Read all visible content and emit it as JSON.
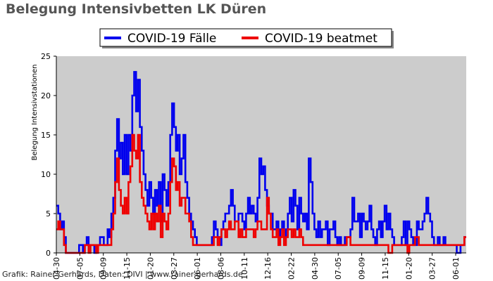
{
  "chart_data": {
    "type": "line",
    "title": "Belegung Intensivbetten LK Düren",
    "ylabel": "Belegung Intensivstationen",
    "xlabel": "",
    "ylim": [
      0,
      25
    ],
    "yticks": [
      0,
      5,
      10,
      15,
      20,
      25
    ],
    "x_tick_labels": [
      "04-30",
      "07-05",
      "09-09",
      "11-15",
      "01-20",
      "03-27",
      "06-01",
      "08-06",
      "10-11",
      "12-16",
      "02-22",
      "04-30",
      "07-05",
      "09-09",
      "11-15",
      "01-20",
      "03-27",
      "06-01"
    ],
    "grid": false,
    "legend_position": "top-center",
    "credit": "Grafik: Rainer Gerhards, Daten: DIVI | www.rainer-gerhards.de",
    "plot_background": "#cccccc",
    "series": [
      {
        "name": "COVID-19 Fälle",
        "color": "#0000ee",
        "values": [
          6,
          5,
          3,
          4,
          2,
          0,
          0,
          0,
          0,
          0,
          0,
          0,
          1,
          1,
          0,
          1,
          2,
          1,
          1,
          1,
          0,
          1,
          1,
          2,
          2,
          1,
          1,
          3,
          2,
          5,
          7,
          13,
          17,
          12,
          14,
          10,
          15,
          10,
          15,
          13,
          20,
          23,
          18,
          22,
          16,
          13,
          10,
          8,
          6,
          9,
          7,
          5,
          8,
          6,
          9,
          4,
          10,
          8,
          6,
          9,
          15,
          19,
          16,
          13,
          15,
          10,
          12,
          15,
          9,
          7,
          5,
          4,
          3,
          2,
          1,
          1,
          1,
          1,
          1,
          1,
          1,
          1,
          2,
          4,
          3,
          2,
          1,
          3,
          4,
          5,
          5,
          6,
          8,
          6,
          4,
          4,
          5,
          5,
          4,
          3,
          5,
          7,
          5,
          6,
          5,
          4,
          7,
          12,
          10,
          11,
          8,
          6,
          5,
          5,
          3,
          3,
          4,
          2,
          3,
          4,
          2,
          3,
          5,
          7,
          4,
          8,
          6,
          3,
          7,
          5,
          4,
          5,
          3,
          12,
          9,
          5,
          3,
          2,
          4,
          2,
          3,
          3,
          4,
          1,
          3,
          3,
          4,
          2,
          1,
          2,
          1,
          1,
          2,
          2,
          2,
          3,
          7,
          4,
          4,
          5,
          2,
          5,
          4,
          3,
          4,
          6,
          3,
          2,
          1,
          3,
          4,
          2,
          4,
          6,
          3,
          5,
          3,
          2,
          1,
          1,
          1,
          1,
          2,
          4,
          1,
          4,
          3,
          2,
          1,
          1,
          4,
          3,
          3,
          4,
          5,
          7,
          5,
          4,
          2,
          1,
          1,
          2,
          1,
          1,
          2,
          1,
          1,
          1,
          1,
          1,
          1,
          0,
          0,
          1,
          1,
          2,
          2
        ]
      },
      {
        "name": "COVID-19 beatmet",
        "color": "#ee0000",
        "values": [
          3,
          4,
          3,
          3,
          1,
          0,
          0,
          0,
          0,
          0,
          0,
          0,
          0,
          0,
          0,
          1,
          1,
          0,
          1,
          1,
          1,
          0,
          1,
          1,
          1,
          1,
          1,
          1,
          1,
          3,
          5,
          9,
          12,
          8,
          6,
          5,
          7,
          5,
          9,
          11,
          15,
          13,
          12,
          15,
          9,
          7,
          6,
          5,
          4,
          3,
          5,
          3,
          5,
          4,
          6,
          2,
          5,
          4,
          3,
          5,
          9,
          12,
          11,
          8,
          9,
          6,
          7,
          7,
          5,
          5,
          4,
          2,
          1,
          1,
          1,
          1,
          1,
          1,
          1,
          1,
          1,
          1,
          1,
          2,
          2,
          1,
          2,
          3,
          3,
          2,
          3,
          4,
          3,
          3,
          4,
          4,
          2,
          3,
          2,
          2,
          3,
          3,
          3,
          3,
          2,
          3,
          4,
          4,
          3,
          3,
          3,
          7,
          5,
          3,
          2,
          2,
          3,
          1,
          2,
          3,
          1,
          2,
          3,
          3,
          2,
          3,
          2,
          2,
          3,
          2,
          1,
          1,
          1,
          1,
          1,
          1,
          1,
          1,
          1,
          1,
          1,
          1,
          1,
          1,
          1,
          1,
          1,
          1,
          1,
          1,
          1,
          1,
          1,
          2,
          2,
          1,
          1,
          1,
          1,
          1,
          1,
          1,
          1,
          1,
          1,
          1,
          1,
          1,
          1,
          1,
          1,
          1,
          1,
          1,
          1,
          0,
          0,
          1,
          1,
          1,
          1,
          1,
          1,
          1,
          1,
          0,
          1,
          1,
          1,
          2,
          2,
          1,
          1,
          1,
          1,
          1,
          1,
          1,
          1,
          1,
          1,
          1,
          1,
          1,
          1,
          1,
          1,
          1,
          1,
          1,
          1,
          1,
          1,
          1,
          1,
          2,
          2
        ]
      }
    ]
  }
}
